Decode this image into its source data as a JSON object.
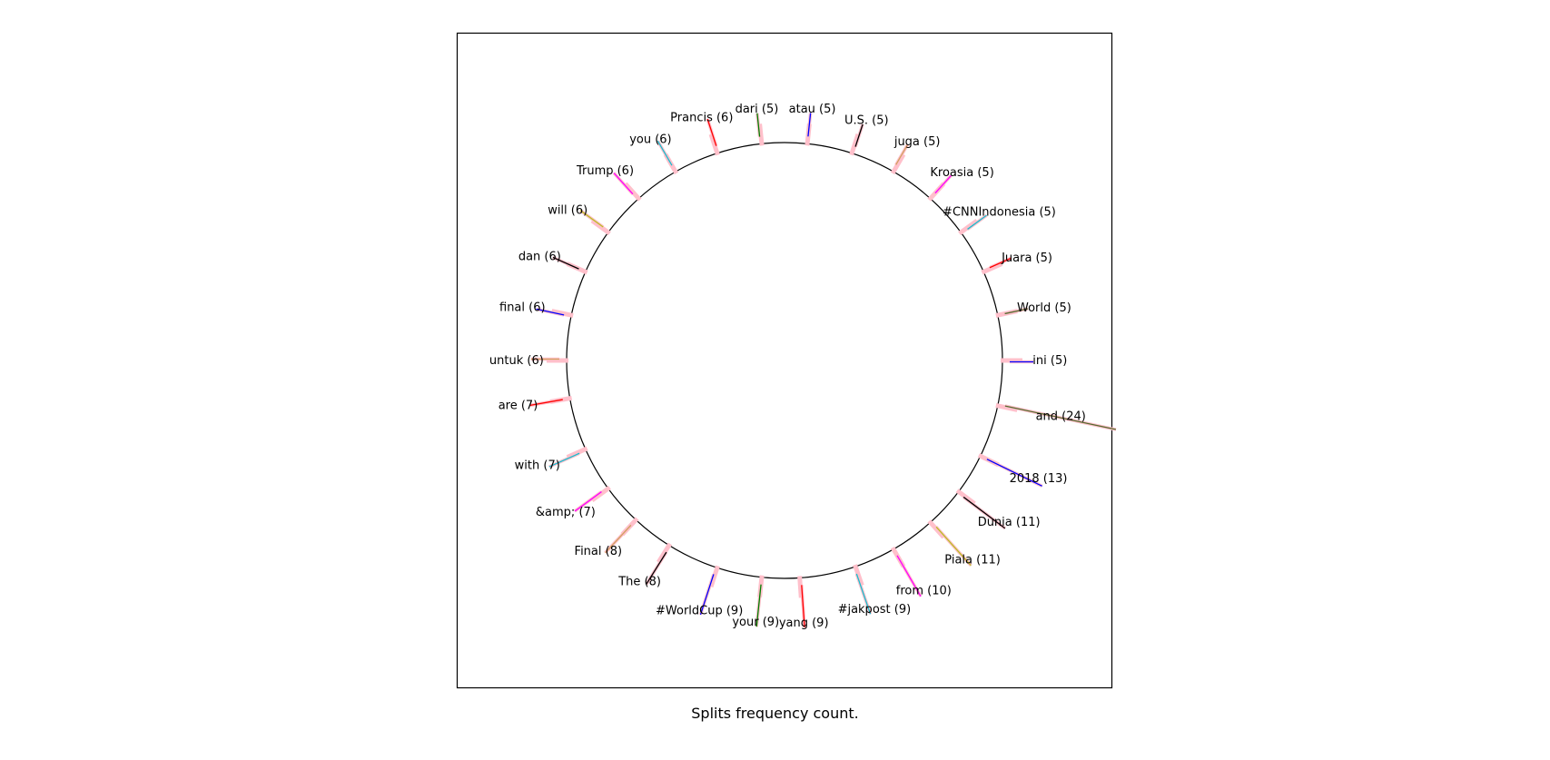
{
  "chart_data": {
    "type": "radial-bar",
    "caption": "Splits frequency count.",
    "items": [
      {
        "label": "and (24)",
        "word": "and",
        "count": 24,
        "angle_deg": 12,
        "color": "#556b2f"
      },
      {
        "label": "2018 (13)",
        "word": "2018",
        "count": 13,
        "angle_deg": 26,
        "color": "#0000ff"
      },
      {
        "label": "Dunia (11)",
        "word": "Dunia",
        "count": 11,
        "angle_deg": 37,
        "color": "#000000"
      },
      {
        "label": "Piala (11)",
        "word": "Piala",
        "count": 11,
        "angle_deg": 48,
        "color": "#bcbd22"
      },
      {
        "label": "from (10)",
        "word": "from",
        "count": 10,
        "angle_deg": 60,
        "color": "#ff00ff"
      },
      {
        "label": "#jakpost (9)",
        "word": "#jakpost",
        "count": 9,
        "angle_deg": 71,
        "color": "#17becf"
      },
      {
        "label": "yang (9)",
        "word": "yang",
        "count": 9,
        "angle_deg": 86,
        "color": "#ff0000"
      },
      {
        "label": "your (9)",
        "word": "your",
        "count": 9,
        "angle_deg": 96,
        "color": "#008000"
      },
      {
        "label": "#WorldCup (9)",
        "word": "#WorldCup",
        "count": 9,
        "angle_deg": 108,
        "color": "#0000ff"
      },
      {
        "label": "The (8)",
        "word": "The",
        "count": 8,
        "angle_deg": 122,
        "color": "#000000"
      },
      {
        "label": "Final (8)",
        "word": "Final",
        "count": 8,
        "angle_deg": 133,
        "color": "#d2a060"
      },
      {
        "label": "&amp; (7)",
        "word": "&amp;",
        "count": 7,
        "angle_deg": 144,
        "color": "#ff00ff"
      },
      {
        "label": "with (7)",
        "word": "with",
        "count": 7,
        "angle_deg": 156,
        "color": "#17becf"
      },
      {
        "label": "are (7)",
        "word": "are",
        "count": 7,
        "angle_deg": 170,
        "color": "#ff0000"
      },
      {
        "label": "untuk (6)",
        "word": "untuk",
        "count": 6,
        "angle_deg": 180,
        "color": "#d2a060"
      },
      {
        "label": "final (6)",
        "word": "final",
        "count": 6,
        "angle_deg": 192,
        "color": "#0000ff"
      },
      {
        "label": "dan (6)",
        "word": "dan",
        "count": 6,
        "angle_deg": 204,
        "color": "#000000"
      },
      {
        "label": "will (6)",
        "word": "will",
        "count": 6,
        "angle_deg": 216,
        "color": "#bcbd22"
      },
      {
        "label": "Trump (6)",
        "word": "Trump",
        "count": 6,
        "angle_deg": 228,
        "color": "#ff00ff"
      },
      {
        "label": "you (6)",
        "word": "you",
        "count": 6,
        "angle_deg": 240,
        "color": "#17becf"
      },
      {
        "label": "Prancis (6)",
        "word": "Prancis",
        "count": 6,
        "angle_deg": 252,
        "color": "#ff0000"
      },
      {
        "label": "dari (5)",
        "word": "dari",
        "count": 5,
        "angle_deg": 264,
        "color": "#008000"
      },
      {
        "label": "atau (5)",
        "word": "atau",
        "count": 5,
        "angle_deg": 276,
        "color": "#0000ff"
      },
      {
        "label": "U.S. (5)",
        "word": "U.S.",
        "count": 5,
        "angle_deg": 288,
        "color": "#000000"
      },
      {
        "label": "juga (5)",
        "word": "juga",
        "count": 5,
        "angle_deg": 300,
        "color": "#d2a060"
      },
      {
        "label": "Kroasia (5)",
        "word": "Kroasia",
        "count": 5,
        "angle_deg": 312,
        "color": "#ff00ff"
      },
      {
        "label": "#CNNIndonesia (5)",
        "word": "#CNNIndonesia",
        "count": 5,
        "angle_deg": 324,
        "color": "#17becf"
      },
      {
        "label": "Juara (5)",
        "word": "Juara",
        "count": 5,
        "angle_deg": 336,
        "color": "#ff0000"
      },
      {
        "label": "World (5)",
        "word": "World",
        "count": 5,
        "angle_deg": 348,
        "color": "#556b2f"
      },
      {
        "label": "ini (5)",
        "word": "ini",
        "count": 5,
        "angle_deg": 360,
        "color": "#0000ff"
      }
    ],
    "colors": {
      "circle": "#000000",
      "frame": "#000000",
      "base_bar": "#ffc0cb"
    }
  }
}
